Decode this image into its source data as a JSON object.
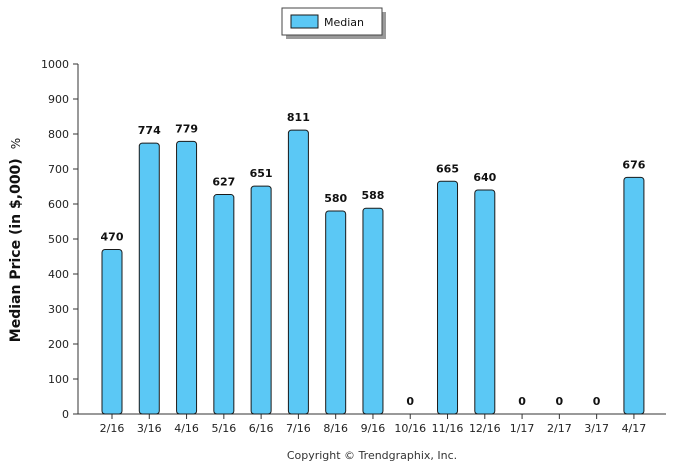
{
  "chart_data": {
    "type": "bar",
    "categories": [
      "2/16",
      "3/16",
      "4/16",
      "5/16",
      "6/16",
      "7/16",
      "8/16",
      "9/16",
      "10/16",
      "11/16",
      "12/16",
      "1/17",
      "2/17",
      "3/17",
      "4/17"
    ],
    "series": [
      {
        "name": "Median",
        "values": [
          470,
          774,
          779,
          627,
          651,
          811,
          580,
          588,
          0,
          665,
          640,
          0,
          0,
          0,
          676
        ]
      }
    ],
    "ylabel": "Median Price (in $,000)",
    "ylabel_unit": "%",
    "xlabel": "",
    "ylim": [
      0,
      1000
    ],
    "yticks": [
      0,
      100,
      200,
      300,
      400,
      500,
      600,
      700,
      800,
      900,
      1000
    ],
    "legend": {
      "position": "top-center",
      "label": "Median"
    },
    "grid": false,
    "colors": {
      "bar_fill": "#5bc8f5",
      "bar_stroke": "#1a1a1a"
    }
  },
  "footer": {
    "credit": "Copyright © Trendgraphix, Inc."
  }
}
